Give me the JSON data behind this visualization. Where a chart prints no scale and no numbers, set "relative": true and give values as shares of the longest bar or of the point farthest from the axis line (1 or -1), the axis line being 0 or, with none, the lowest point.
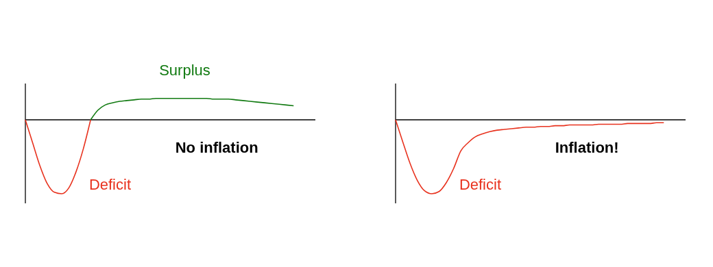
{
  "chart_data": [
    {
      "type": "line",
      "relative": true,
      "categories": [
        null,
        null,
        null,
        null,
        null,
        null,
        null,
        null,
        null,
        null,
        null,
        null,
        null,
        null,
        null,
        null,
        null,
        null,
        null,
        null,
        null,
        null,
        null,
        null,
        null,
        null,
        null,
        null,
        null,
        null,
        null,
        null,
        null,
        null,
        null,
        null,
        null,
        null,
        null,
        null,
        null
      ],
      "series": [
        {
          "name": "Deficit",
          "color": "#e8321e",
          "values": [
            0,
            -0.31,
            -0.62,
            -0.86,
            -0.98,
            -1,
            -0.92,
            -0.7,
            -0.39,
            0,
            null,
            null,
            null,
            null,
            null,
            null,
            null,
            null,
            null,
            null,
            null,
            null,
            null,
            null,
            null,
            null,
            null,
            null,
            null,
            null,
            null,
            null,
            null,
            null,
            null,
            null,
            null,
            null,
            null,
            null,
            null
          ]
        },
        {
          "name": "Surplus",
          "color": "#117a11",
          "values": [
            null,
            null,
            null,
            null,
            null,
            null,
            null,
            null,
            null,
            0,
            0.13,
            0.2,
            0.23,
            0.25,
            0.26,
            0.27,
            0.28,
            0.28,
            0.29,
            0.29,
            0.29,
            0.29,
            0.29,
            0.29,
            0.29,
            0.29,
            0.28,
            0.28,
            0.28,
            0.27,
            0.26,
            0.25,
            0.24,
            0.23,
            0.22,
            0.21,
            0.2,
            0.19,
            null,
            null,
            null
          ]
        }
      ],
      "annotations": [
        "No inflation"
      ]
    },
    {
      "type": "line",
      "relative": true,
      "categories": [
        null,
        null,
        null,
        null,
        null,
        null,
        null,
        null,
        null,
        null,
        null,
        null,
        null,
        null,
        null,
        null,
        null,
        null,
        null,
        null,
        null,
        null,
        null,
        null,
        null,
        null,
        null,
        null,
        null,
        null,
        null,
        null,
        null,
        null,
        null,
        null,
        null,
        null,
        null,
        null,
        null
      ],
      "series": [
        {
          "name": "Deficit",
          "color": "#e8321e",
          "values": [
            0,
            -0.3,
            -0.59,
            -0.82,
            -0.96,
            -1,
            -0.97,
            -0.85,
            -0.66,
            -0.42,
            -0.31,
            -0.23,
            -0.19,
            -0.16,
            -0.14,
            -0.13,
            -0.12,
            -0.11,
            -0.1,
            -0.1,
            -0.09,
            -0.09,
            -0.08,
            -0.08,
            -0.07,
            -0.07,
            -0.07,
            -0.07,
            -0.06,
            -0.06,
            -0.06,
            -0.06,
            -0.05,
            -0.05,
            -0.05,
            -0.05,
            -0.04,
            -0.04,
            null,
            null,
            null
          ]
        }
      ],
      "annotations": [
        "Inflation!"
      ]
    }
  ]
}
